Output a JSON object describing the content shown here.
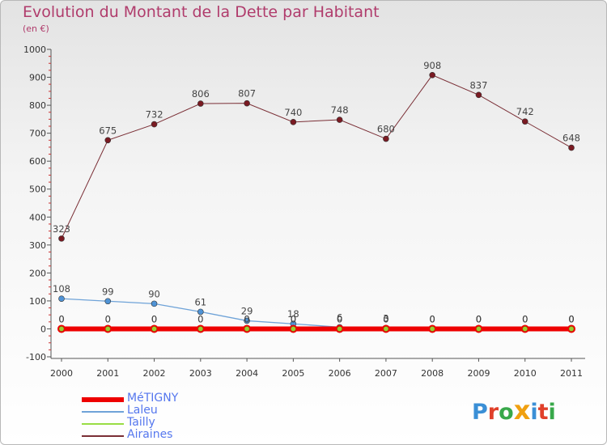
{
  "title": "Evolution du Montant de la Dette par Habitant",
  "subtitle": "(en €)",
  "logo_text": "Proxiti",
  "logo_colors": [
    "#3a8fd6",
    "#e0402a",
    "#38a84a",
    "#f0a010",
    "#3a8fd6",
    "#e0402a",
    "#38a84a"
  ],
  "chart_data": {
    "type": "line",
    "title": "Evolution du Montant de la Dette par Habitant",
    "subtitle": "(en €)",
    "x": [
      "2000",
      "2001",
      "2002",
      "2003",
      "2004",
      "2005",
      "2006",
      "2007",
      "2008",
      "2009",
      "2010",
      "2011"
    ],
    "ylim": [
      -100,
      1000
    ],
    "yticks": [
      -100,
      0,
      100,
      200,
      300,
      400,
      500,
      600,
      700,
      800,
      900,
      1000
    ],
    "grid": false,
    "legend_position": "bottom-left",
    "series": [
      {
        "name": "MéTIGNY",
        "color": "#ee0000",
        "values": [
          0,
          0,
          0,
          0,
          0,
          0,
          0,
          0,
          0,
          0,
          0,
          0
        ],
        "labels": [
          "0",
          "0",
          "0",
          "0",
          "0",
          "0",
          "0",
          "0",
          "0",
          "0",
          "0",
          "0"
        ]
      },
      {
        "name": "Laleu",
        "color": "#6fa3d8",
        "values": [
          108,
          99,
          90,
          61,
          29,
          18,
          6,
          3,
          0,
          0,
          0,
          0
        ],
        "labels": [
          "108",
          "99",
          "90",
          "61",
          "29",
          "18",
          "6",
          "3",
          "0",
          "0",
          "0",
          "0"
        ]
      },
      {
        "name": "Tailly",
        "color": "#99dd44",
        "values": [
          0,
          0,
          0,
          0,
          0,
          0,
          0,
          0,
          0,
          0,
          0,
          0
        ],
        "labels": [
          "0",
          "0",
          "0",
          "0",
          "0",
          "0",
          "0",
          "0",
          "0",
          "0",
          "0",
          "0"
        ]
      },
      {
        "name": "Airaines",
        "color": "#7a2e35",
        "values": [
          323,
          675,
          732,
          806,
          807,
          740,
          748,
          680,
          908,
          837,
          742,
          648
        ],
        "labels": [
          "323",
          "675",
          "732",
          "806",
          "807",
          "740",
          "748",
          "680",
          "908",
          "837",
          "742",
          "648"
        ]
      }
    ]
  }
}
